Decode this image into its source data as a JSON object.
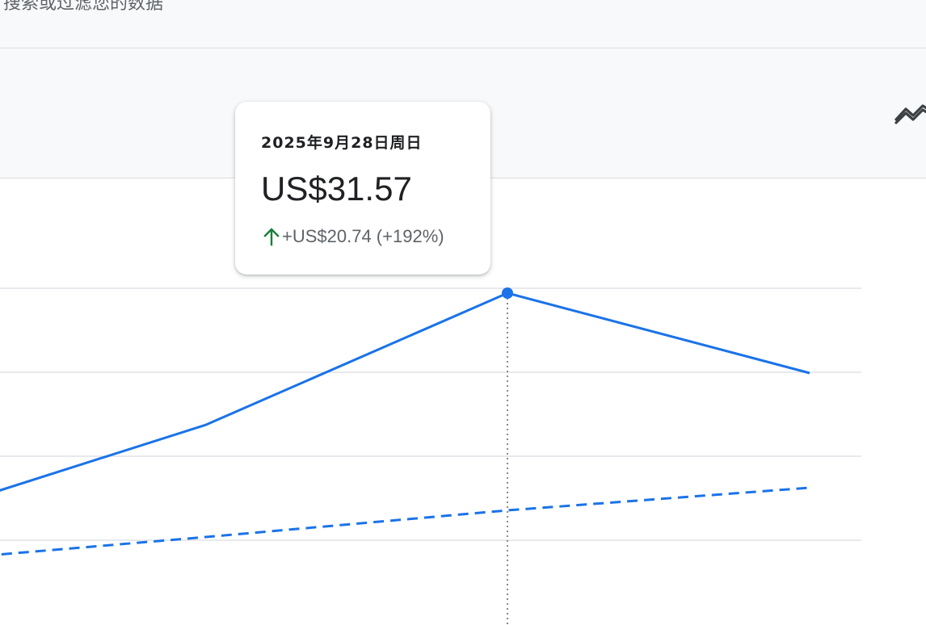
{
  "header": {
    "clipped_text": "搜索或过滤您的数据"
  },
  "tooltip": {
    "date": "2025年9月28日周日",
    "value": "US$31.57",
    "change": "+US$20.74 (+192%)"
  },
  "colors": {
    "series": "#1a73e8",
    "positive": "#188038",
    "grid": "#dadce0"
  },
  "icons": {
    "trend": "trend-icon",
    "arrow": "arrow-up-icon"
  },
  "chart_data": {
    "type": "line",
    "title": "",
    "xlabel": "",
    "ylabel": "",
    "x": [
      0,
      1,
      2,
      3,
      4
    ],
    "series": [
      {
        "style": "solid",
        "values": [
          14.8,
          19.5,
          25.2,
          31.57,
          26.8
        ]
      },
      {
        "style": "dashed",
        "values": [
          10.6,
          12.2,
          13.7,
          15.1,
          16.4
        ]
      }
    ],
    "gridlines": [
      12,
      17,
      22,
      27,
      32
    ],
    "ylim": [
      0,
      34
    ],
    "highlight_index": 3,
    "grid": true,
    "legend": "none"
  }
}
